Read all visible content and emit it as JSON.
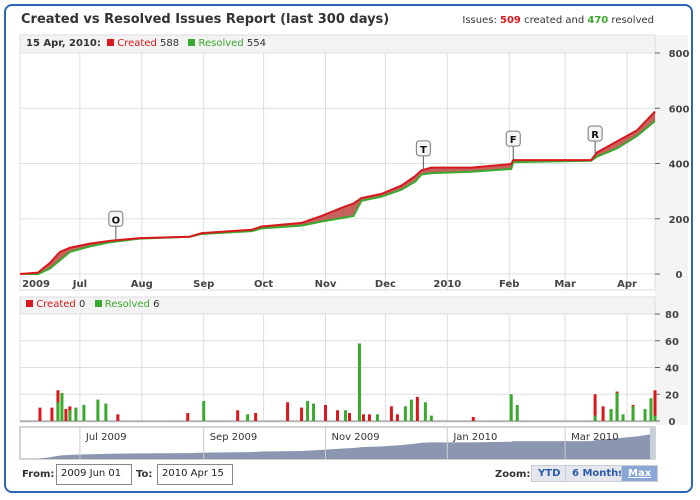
{
  "header": {
    "title": "Created vs Resolved Issues Report (last 300 days)",
    "summary_prefix": "Issues:",
    "created_count": "509",
    "summary_mid": "created and",
    "resolved_count": "470",
    "summary_suffix": "resolved"
  },
  "colors": {
    "created": "#d9181e",
    "resolved": "#3aaa2e",
    "area": "#c0504d",
    "navigator": "#7e8ca8"
  },
  "tooltip_main": {
    "date": "15 Apr, 2010:",
    "created_label": "Created",
    "created_value": "588",
    "resolved_label": "Resolved",
    "resolved_value": "554"
  },
  "tooltip_bars": {
    "created_label": "Created",
    "created_value": "0",
    "resolved_label": "Resolved",
    "resolved_value": "6"
  },
  "controls": {
    "from_label": "From:",
    "from_value": "2009 Jun 01",
    "to_label": "To:",
    "to_value": "2010 Apr 15",
    "zoom_label": "Zoom:",
    "zoom_options": [
      "YTD",
      "6 Months",
      "Max"
    ],
    "zoom_selected": "Max"
  },
  "chart_data": [
    {
      "type": "area",
      "title": "",
      "x_range": [
        "2009-06-01",
        "2010-04-15"
      ],
      "ylim": [
        0,
        800
      ],
      "yticks": [
        0,
        200,
        400,
        600,
        800
      ],
      "xticks": [
        "2009",
        "Jul",
        "Aug",
        "Sep",
        "Oct",
        "Nov",
        "Dec",
        "2010",
        "Feb",
        "Mar",
        "Apr"
      ],
      "xtick_dates": [
        "2009-06-01",
        "2009-07-01",
        "2009-08-01",
        "2009-09-01",
        "2009-10-01",
        "2009-11-01",
        "2009-12-01",
        "2010-01-01",
        "2010-02-01",
        "2010-03-01",
        "2010-04-01"
      ],
      "grid": true,
      "series": [
        {
          "name": "Created",
          "points": [
            [
              "2009-06-01",
              0
            ],
            [
              "2009-06-10",
              5
            ],
            [
              "2009-06-16",
              40
            ],
            [
              "2009-06-21",
              80
            ],
            [
              "2009-06-26",
              95
            ],
            [
              "2009-07-06",
              110
            ],
            [
              "2009-07-16",
              120
            ],
            [
              "2009-07-31",
              130
            ],
            [
              "2009-08-25",
              135
            ],
            [
              "2009-08-31",
              148
            ],
            [
              "2009-09-25",
              160
            ],
            [
              "2009-09-30",
              172
            ],
            [
              "2009-10-20",
              185
            ],
            [
              "2009-10-30",
              210
            ],
            [
              "2009-11-11",
              245
            ],
            [
              "2009-11-15",
              255
            ],
            [
              "2009-11-19",
              275
            ],
            [
              "2009-11-29",
              290
            ],
            [
              "2009-12-09",
              320
            ],
            [
              "2009-12-16",
              355
            ],
            [
              "2009-12-19",
              375
            ],
            [
              "2009-12-24",
              385
            ],
            [
              "2010-01-13",
              385
            ],
            [
              "2010-02-02",
              398
            ],
            [
              "2010-02-03",
              412
            ],
            [
              "2010-03-14",
              412
            ],
            [
              "2010-03-17",
              440
            ],
            [
              "2010-03-27",
              480
            ],
            [
              "2010-04-06",
              520
            ],
            [
              "2010-04-15",
              588
            ]
          ]
        },
        {
          "name": "Resolved",
          "points": [
            [
              "2009-06-01",
              0
            ],
            [
              "2009-06-10",
              0
            ],
            [
              "2009-06-16",
              20
            ],
            [
              "2009-06-21",
              50
            ],
            [
              "2009-06-26",
              80
            ],
            [
              "2009-07-06",
              100
            ],
            [
              "2009-07-16",
              115
            ],
            [
              "2009-07-31",
              128
            ],
            [
              "2009-08-25",
              135
            ],
            [
              "2009-08-31",
              145
            ],
            [
              "2009-09-25",
              155
            ],
            [
              "2009-09-30",
              165
            ],
            [
              "2009-10-20",
              175
            ],
            [
              "2009-10-30",
              190
            ],
            [
              "2009-11-11",
              205
            ],
            [
              "2009-11-15",
              210
            ],
            [
              "2009-11-19",
              265
            ],
            [
              "2009-11-29",
              280
            ],
            [
              "2009-12-09",
              305
            ],
            [
              "2009-12-16",
              335
            ],
            [
              "2009-12-19",
              360
            ],
            [
              "2009-12-24",
              365
            ],
            [
              "2010-01-13",
              370
            ],
            [
              "2010-02-02",
              380
            ],
            [
              "2010-02-03",
              405
            ],
            [
              "2010-03-14",
              410
            ],
            [
              "2010-03-17",
              425
            ],
            [
              "2010-03-27",
              455
            ],
            [
              "2010-04-06",
              500
            ],
            [
              "2010-04-15",
              554
            ]
          ]
        }
      ],
      "flags": [
        {
          "date": "2009-07-19",
          "label": "O"
        },
        {
          "date": "2009-12-20",
          "label": "T"
        },
        {
          "date": "2010-02-03",
          "label": "F"
        },
        {
          "date": "2010-03-16",
          "label": "R"
        }
      ]
    },
    {
      "type": "bar",
      "title": "",
      "ylim": [
        0,
        80
      ],
      "yticks": [
        0,
        20,
        40,
        60,
        80
      ],
      "grid": true,
      "series_names": [
        "Created",
        "Resolved"
      ],
      "bars": [
        [
          "2009-06-11",
          10,
          0
        ],
        [
          "2009-06-17",
          10,
          0
        ],
        [
          "2009-06-20",
          23,
          14
        ],
        [
          "2009-06-22",
          0,
          21
        ],
        [
          "2009-06-24",
          9,
          0
        ],
        [
          "2009-06-26",
          11,
          8
        ],
        [
          "2009-06-29",
          0,
          10
        ],
        [
          "2009-07-03",
          0,
          12
        ],
        [
          "2009-07-10",
          0,
          16
        ],
        [
          "2009-07-14",
          0,
          13
        ],
        [
          "2009-07-20",
          5,
          0
        ],
        [
          "2009-08-24",
          6,
          0
        ],
        [
          "2009-09-01",
          0,
          15
        ],
        [
          "2009-09-18",
          8,
          0
        ],
        [
          "2009-09-23",
          0,
          5
        ],
        [
          "2009-09-27",
          6,
          0
        ],
        [
          "2009-10-13",
          14,
          0
        ],
        [
          "2009-10-20",
          10,
          0
        ],
        [
          "2009-10-23",
          0,
          15
        ],
        [
          "2009-10-26",
          0,
          13
        ],
        [
          "2009-11-01",
          12,
          0
        ],
        [
          "2009-11-07",
          8,
          0
        ],
        [
          "2009-11-11",
          0,
          8
        ],
        [
          "2009-11-13",
          6,
          0
        ],
        [
          "2009-11-18",
          0,
          58
        ],
        [
          "2009-11-20",
          5,
          0
        ],
        [
          "2009-11-23",
          5,
          0
        ],
        [
          "2009-11-27",
          0,
          5
        ],
        [
          "2009-12-04",
          11,
          0
        ],
        [
          "2009-12-07",
          5,
          0
        ],
        [
          "2009-12-11",
          0,
          11
        ],
        [
          "2009-12-14",
          0,
          16
        ],
        [
          "2009-12-17",
          18,
          0
        ],
        [
          "2009-12-21",
          0,
          14
        ],
        [
          "2009-12-24",
          0,
          4
        ],
        [
          "2010-01-14",
          3,
          0
        ],
        [
          "2010-02-02",
          0,
          20
        ],
        [
          "2010-02-05",
          0,
          12
        ],
        [
          "2010-03-16",
          20,
          4
        ],
        [
          "2010-03-20",
          11,
          0
        ],
        [
          "2010-03-24",
          0,
          9
        ],
        [
          "2010-03-27",
          22,
          21
        ],
        [
          "2010-03-30",
          0,
          5
        ],
        [
          "2010-04-04",
          12,
          11
        ],
        [
          "2010-04-10",
          0,
          9
        ],
        [
          "2010-04-13",
          0,
          17
        ],
        [
          "2010-04-15",
          23,
          4
        ]
      ]
    },
    {
      "type": "area",
      "title": "navigator",
      "xticks": [
        "Jul 2009",
        "Sep 2009",
        "Nov 2009",
        "Jan 2010",
        "Mar 2010"
      ],
      "xtick_dates": [
        "2009-07-01",
        "2009-09-01",
        "2009-11-01",
        "2010-01-01",
        "2010-03-01"
      ]
    }
  ]
}
